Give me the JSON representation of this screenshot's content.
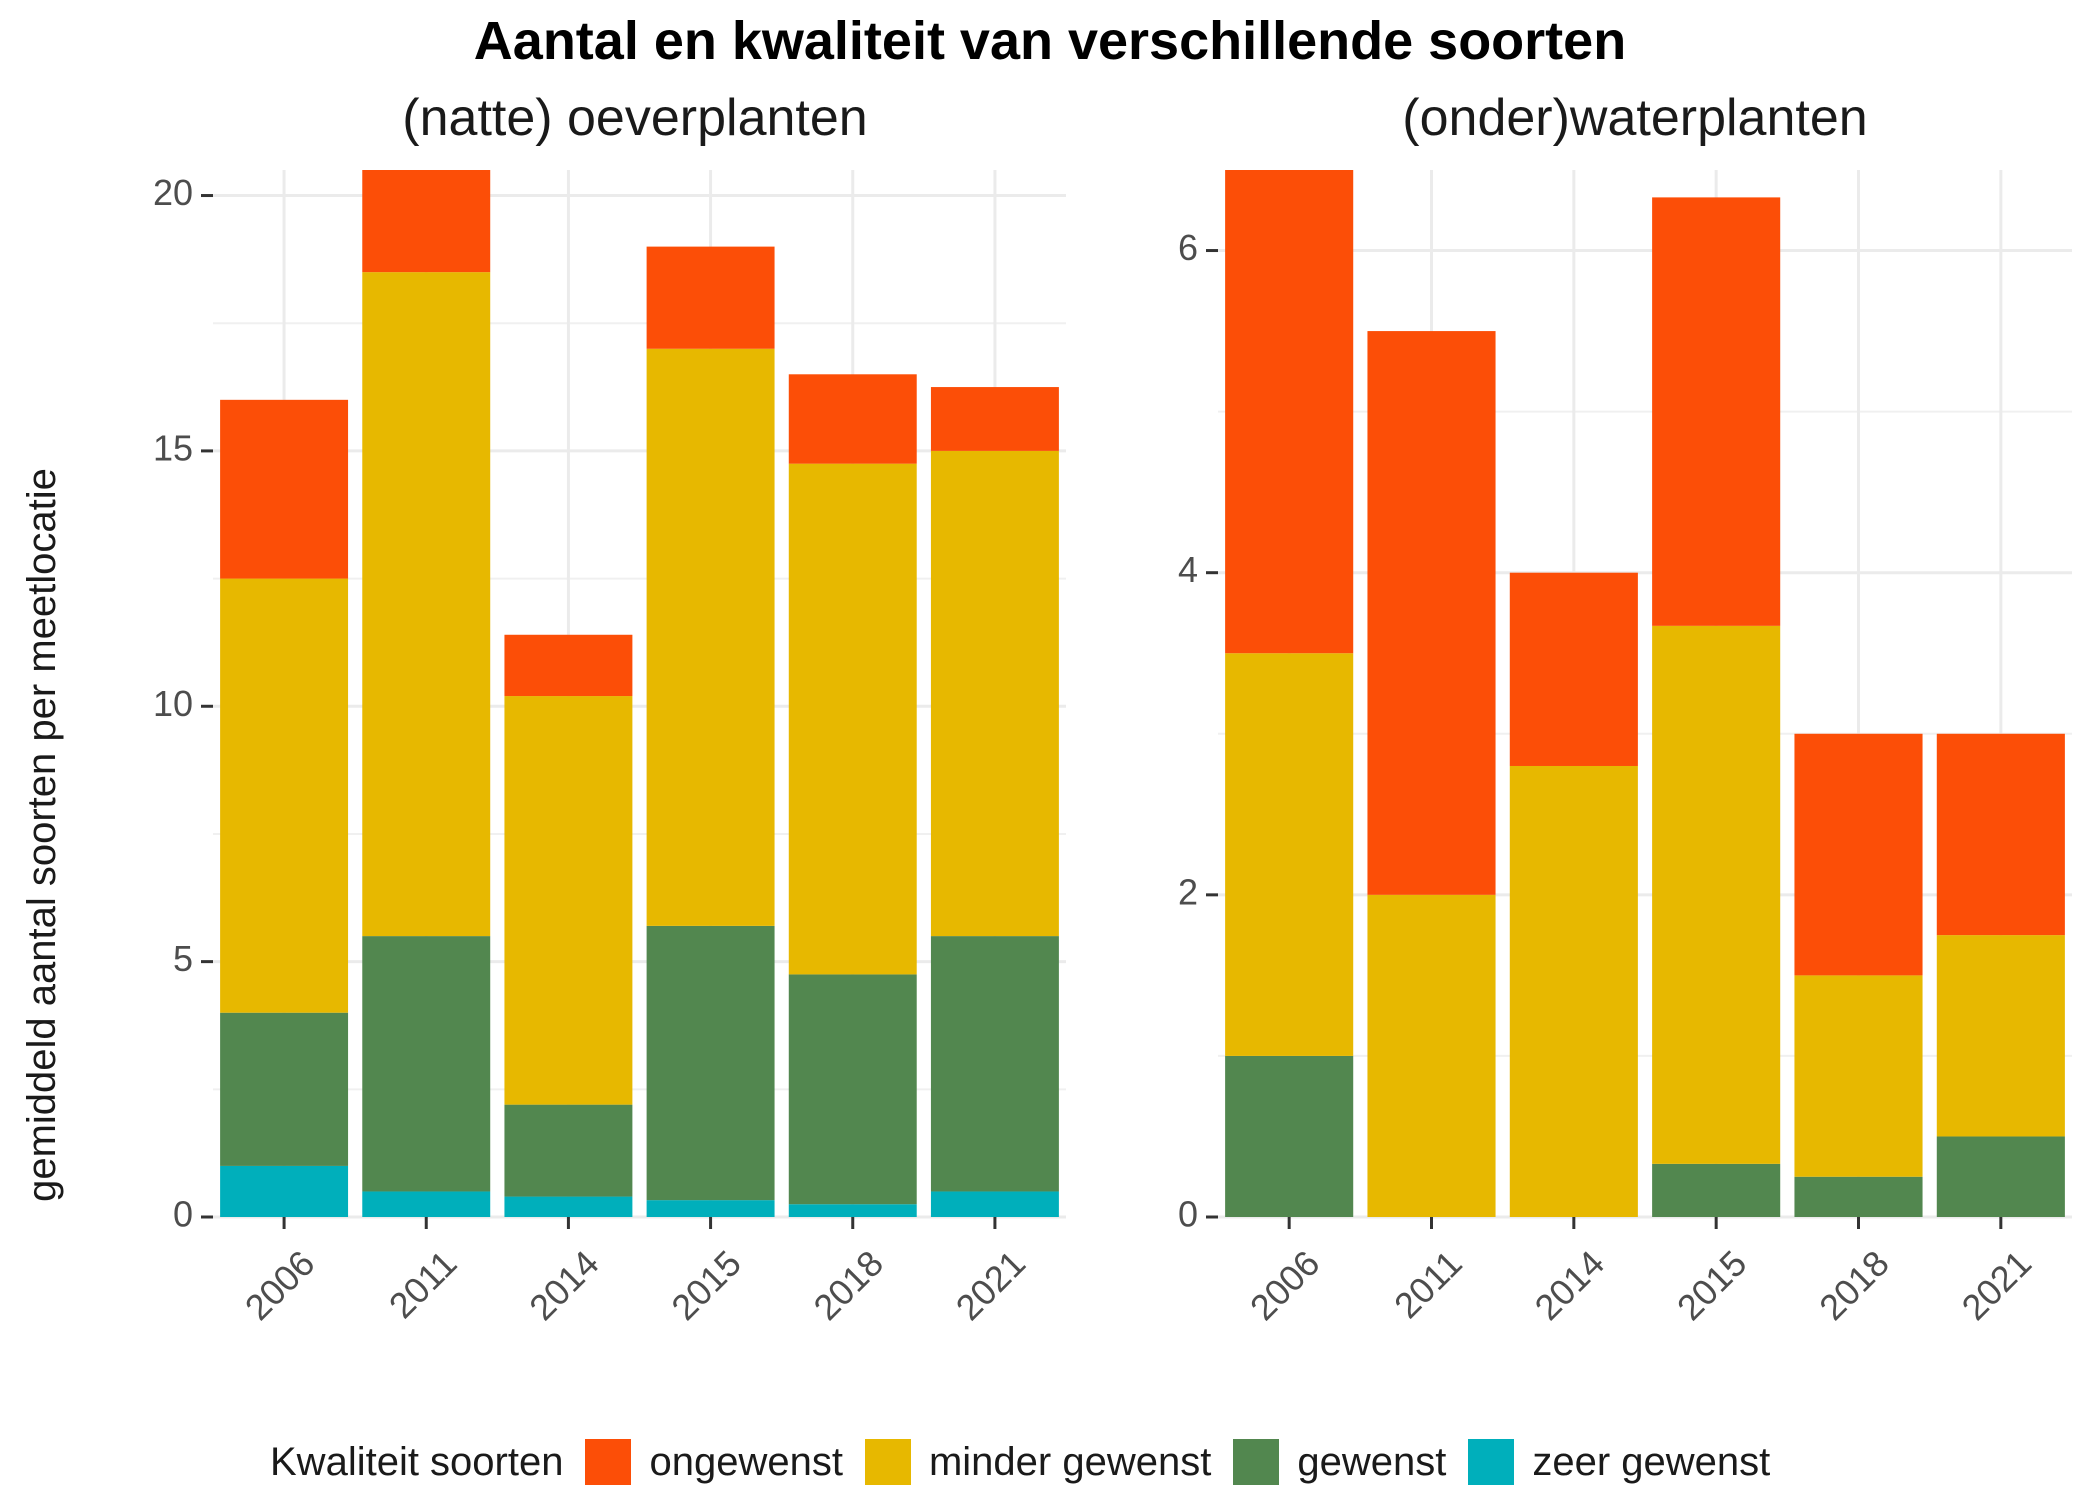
{
  "title": "Aantal en kwaliteit van verschillende soorten",
  "ylabel": "gemiddeld aantal soorten per meetlocatie",
  "legend": {
    "title": "Kwaliteit soorten",
    "items": [
      {
        "label": "ongewenst",
        "color": "#FC4E07"
      },
      {
        "label": "minder gewenst",
        "color": "#E7B800"
      },
      {
        "label": "gewenst",
        "color": "#52874F"
      },
      {
        "label": "zeer gewenst",
        "color": "#00AFBB"
      }
    ]
  },
  "chart_data": [
    {
      "type": "bar",
      "stacked": true,
      "title": "(natte) oeverplanten",
      "categories": [
        "2006",
        "2011",
        "2014",
        "2015",
        "2018",
        "2021"
      ],
      "ylim": [
        0,
        20.5
      ],
      "yticks": [
        0,
        5,
        10,
        15,
        20
      ],
      "grid": true,
      "legend_position": "bottom",
      "series": [
        {
          "name": "zeer gewenst",
          "color": "#00AFBB",
          "values": [
            1.0,
            0.5,
            0.4,
            0.33,
            0.25,
            0.5
          ]
        },
        {
          "name": "gewenst",
          "color": "#52874F",
          "values": [
            3.0,
            5.0,
            1.8,
            5.37,
            4.5,
            5.0
          ]
        },
        {
          "name": "minder gewenst",
          "color": "#E7B800",
          "values": [
            8.5,
            13.0,
            8.0,
            11.3,
            10.0,
            9.5
          ]
        },
        {
          "name": "ongewenst",
          "color": "#FC4E07",
          "values": [
            3.5,
            2.0,
            1.2,
            2.0,
            1.75,
            1.25
          ]
        }
      ]
    },
    {
      "type": "bar",
      "stacked": true,
      "title": "(onder)waterplanten",
      "categories": [
        "2006",
        "2011",
        "2014",
        "2015",
        "2018",
        "2021"
      ],
      "ylim": [
        0,
        6.5
      ],
      "yticks": [
        0,
        2,
        4,
        6
      ],
      "grid": true,
      "legend_position": "bottom",
      "series": [
        {
          "name": "zeer gewenst",
          "color": "#00AFBB",
          "values": [
            0,
            0,
            0,
            0,
            0,
            0
          ]
        },
        {
          "name": "gewenst",
          "color": "#52874F",
          "values": [
            1.0,
            0,
            0,
            0.33,
            0.25,
            0.5
          ]
        },
        {
          "name": "minder gewenst",
          "color": "#E7B800",
          "values": [
            2.5,
            2.0,
            2.8,
            3.34,
            1.25,
            1.25
          ]
        },
        {
          "name": "ongewenst",
          "color": "#FC4E07",
          "values": [
            3.0,
            3.5,
            1.2,
            2.66,
            1.5,
            1.25
          ]
        }
      ]
    }
  ]
}
